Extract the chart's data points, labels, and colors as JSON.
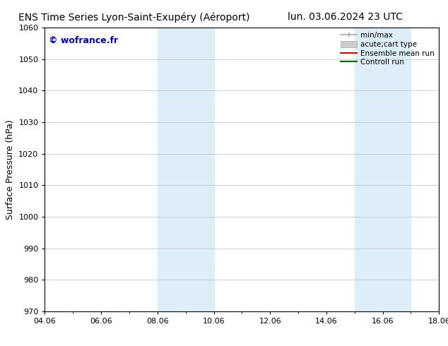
{
  "title_left": "ENS Time Series Lyon-Saint-Exupéry (Aéroport)",
  "title_right": "lun. 03.06.2024 23 UTC",
  "ylabel": "Surface Pressure (hPa)",
  "ylim": [
    970,
    1060
  ],
  "yticks": [
    970,
    980,
    990,
    1000,
    1010,
    1020,
    1030,
    1040,
    1050,
    1060
  ],
  "xlim_start": 4.06,
  "xlim_end": 18.06,
  "xtick_labels": [
    "04.06",
    "06.06",
    "08.06",
    "10.06",
    "12.06",
    "14.06",
    "16.06",
    "18.06"
  ],
  "xtick_positions": [
    4.06,
    6.06,
    8.06,
    10.06,
    12.06,
    14.06,
    16.06,
    18.06
  ],
  "watermark": "© wofrance.fr",
  "watermark_color": "#0000bb",
  "bg_color": "#ffffff",
  "plot_bg_color": "#ffffff",
  "shaded_bands": [
    {
      "x_start": 8.06,
      "x_end": 10.06,
      "color": "#ddeef8"
    },
    {
      "x_start": 15.06,
      "x_end": 17.06,
      "color": "#ddeef8"
    }
  ],
  "title_fontsize": 10,
  "tick_fontsize": 8,
  "ylabel_fontsize": 9,
  "watermark_fontsize": 9,
  "grid_color": "#bbbbbb",
  "border_color": "#000000",
  "legend_fontsize": 7.5
}
